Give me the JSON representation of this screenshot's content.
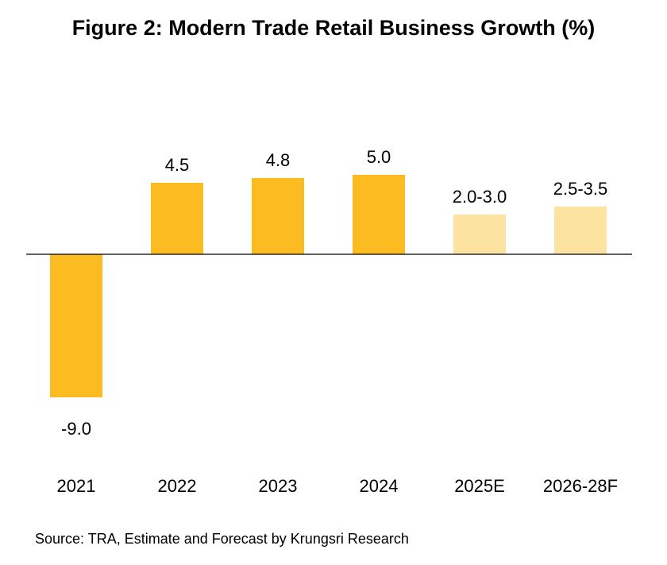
{
  "title": "Figure 2: Modern Trade Retail Business Growth (%)",
  "source": "Source: TRA, Estimate and Forecast by Krungsri Research",
  "colors": {
    "actual": "#FCBB20",
    "forecast": "#FDE3A1",
    "axis": "#000000"
  },
  "chart_data": {
    "type": "bar",
    "title": "Figure 2: Modern Trade Retail Business Growth (%)",
    "xlabel": "",
    "ylabel": "",
    "ylim": [
      -9.5,
      7
    ],
    "grid": false,
    "categories": [
      "2021",
      "2022",
      "2023",
      "2024",
      "2025E",
      "2026-28F"
    ],
    "values": [
      -9.0,
      4.5,
      4.8,
      5.0,
      2.5,
      3.0
    ],
    "labels": [
      "-9.0",
      "4.5",
      "4.8",
      "5.0",
      "2.0-3.0",
      "2.5-3.5"
    ],
    "kinds": [
      "actual",
      "actual",
      "actual",
      "actual",
      "forecast",
      "forecast"
    ]
  }
}
